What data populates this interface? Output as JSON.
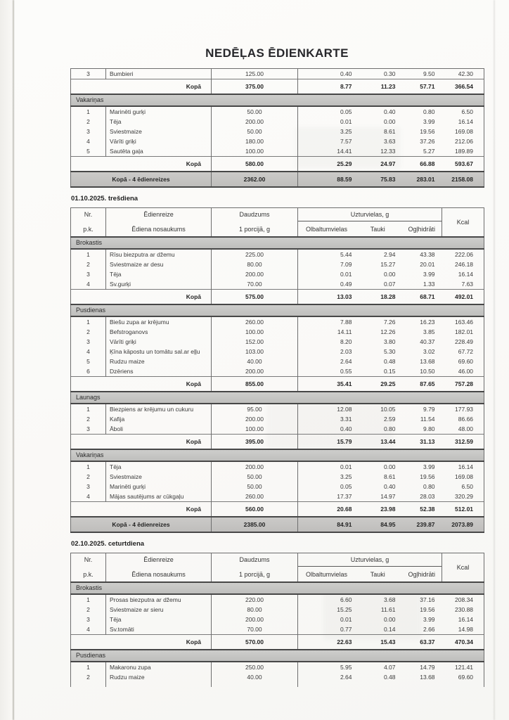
{
  "title": "NEDĒĻAS ĒDIENKARTE",
  "colors": {
    "paper": "#fbfbf9",
    "band_gray": "#c6c6c4",
    "line_dark": "#474747",
    "line_thin": "#6e6e6e",
    "ink": "#3a3a3a",
    "ink_bold": "#232323"
  },
  "columns": {
    "nr_top": "Nr.",
    "nr_bottom": "p.k.",
    "meal_top": "Ēdienreize",
    "meal_bottom": "Ēdiena nosaukums",
    "qty_top": "Daudzums",
    "qty_bottom": "1 porcijā, g",
    "nutrients_group": "Uzturvielas, g",
    "nutrients": [
      "Olbaltumvielas",
      "Tauki",
      "Ogļhidrāti"
    ],
    "kcal": "Kcal"
  },
  "tables": [
    {
      "heading": null,
      "has_header": false,
      "continued": true,
      "cut_off": false,
      "sections": [
        {
          "band": null,
          "rows": [
            {
              "nr": "3",
              "name": "Bumbieri",
              "qty": "125.00",
              "olb": "0.40",
              "tauki": "0.30",
              "ogl": "9.50",
              "kcal": "42.30"
            }
          ],
          "total": {
            "label": "Kopā",
            "qty": "375.00",
            "olb": "8.77",
            "tauki": "11.23",
            "ogl": "57.71",
            "kcal": "366.54"
          }
        },
        {
          "band": "Vakariņas",
          "rows": [
            {
              "nr": "1",
              "name": "Marinēti gurķi",
              "qty": "50.00",
              "olb": "0.05",
              "tauki": "0.40",
              "ogl": "0.80",
              "kcal": "6.50"
            },
            {
              "nr": "2",
              "name": "Tēja",
              "qty": "200.00",
              "olb": "0.01",
              "tauki": "0.00",
              "ogl": "3.99",
              "kcal": "16.14"
            },
            {
              "nr": "3",
              "name": "Sviestmaize",
              "qty": "50.00",
              "olb": "3.25",
              "tauki": "8.61",
              "ogl": "19.56",
              "kcal": "169.08"
            },
            {
              "nr": "4",
              "name": "Vārīti griķi",
              "qty": "180.00",
              "olb": "7.57",
              "tauki": "3.63",
              "ogl": "37.26",
              "kcal": "212.06"
            },
            {
              "nr": "5",
              "name": "Sautēta gaļa",
              "qty": "100.00",
              "olb": "14.41",
              "tauki": "12.33",
              "ogl": "5.27",
              "kcal": "189.89"
            }
          ],
          "total": {
            "label": "Kopā",
            "qty": "580.00",
            "olb": "25.29",
            "tauki": "24.97",
            "ogl": "66.88",
            "kcal": "593.67"
          }
        }
      ],
      "grand_total": {
        "label": "Kopā - 4 ēdienreizes",
        "qty": "2362.00",
        "olb": "88.59",
        "tauki": "75.83",
        "ogl": "283.01",
        "kcal": "2158.08"
      }
    },
    {
      "heading": "01.10.2025.  trešdiena",
      "has_header": true,
      "continued": false,
      "cut_off": false,
      "sections": [
        {
          "band": "Brokastis",
          "rows": [
            {
              "nr": "1",
              "name": "Rīsu biezputra ar džemu",
              "qty": "225.00",
              "olb": "5.44",
              "tauki": "2.94",
              "ogl": "43.38",
              "kcal": "222.06"
            },
            {
              "nr": "2",
              "name": "Sviestmaize ar desu",
              "qty": "80.00",
              "olb": "7.09",
              "tauki": "15.27",
              "ogl": "20.01",
              "kcal": "246.18"
            },
            {
              "nr": "3",
              "name": "Tēja",
              "qty": "200.00",
              "olb": "0.01",
              "tauki": "0.00",
              "ogl": "3.99",
              "kcal": "16.14"
            },
            {
              "nr": "4",
              "name": "Sv.gurķi",
              "qty": "70.00",
              "olb": "0.49",
              "tauki": "0.07",
              "ogl": "1.33",
              "kcal": "7.63"
            }
          ],
          "total": {
            "label": "Kopā",
            "qty": "575.00",
            "olb": "13.03",
            "tauki": "18.28",
            "ogl": "68.71",
            "kcal": "492.01"
          }
        },
        {
          "band": "Pusdienas",
          "rows": [
            {
              "nr": "1",
              "name": "Biešu zupa ar krējumu",
              "qty": "260.00",
              "olb": "7.88",
              "tauki": "7.26",
              "ogl": "16.23",
              "kcal": "163.46"
            },
            {
              "nr": "2",
              "name": "Befstroganovs",
              "qty": "100.00",
              "olb": "14.11",
              "tauki": "12.26",
              "ogl": "3.85",
              "kcal": "182.01"
            },
            {
              "nr": "3",
              "name": "Vārīti griķi",
              "qty": "152.00",
              "olb": "8.20",
              "tauki": "3.80",
              "ogl": "40.37",
              "kcal": "228.49"
            },
            {
              "nr": "4",
              "name": "Ķīna kāpostu un tomātu sal.ar eļļu",
              "qty": "103.00",
              "olb": "2.03",
              "tauki": "5.30",
              "ogl": "3.02",
              "kcal": "67.72",
              "wrap": true
            },
            {
              "nr": "5",
              "name": "Rudzu maize",
              "qty": "40.00",
              "olb": "2.64",
              "tauki": "0.48",
              "ogl": "13.68",
              "kcal": "69.60"
            },
            {
              "nr": "6",
              "name": "Dzēriens",
              "qty": "200.00",
              "olb": "0.55",
              "tauki": "0.15",
              "ogl": "10.50",
              "kcal": "46.00"
            }
          ],
          "total": {
            "label": "Kopā",
            "qty": "855.00",
            "olb": "35.41",
            "tauki": "29.25",
            "ogl": "87.65",
            "kcal": "757.28"
          }
        },
        {
          "band": "Launags",
          "rows": [
            {
              "nr": "1",
              "name": "Biezpiens ar krējumu un cukuru",
              "qty": "95.00",
              "olb": "12.08",
              "tauki": "10.05",
              "ogl": "9.79",
              "kcal": "177.93"
            },
            {
              "nr": "2",
              "name": "Kafija",
              "qty": "200.00",
              "olb": "3.31",
              "tauki": "2.59",
              "ogl": "11.54",
              "kcal": "86.66"
            },
            {
              "nr": "3",
              "name": "Āboli",
              "qty": "100.00",
              "olb": "0.40",
              "tauki": "0.80",
              "ogl": "9.80",
              "kcal": "48.00"
            }
          ],
          "total": {
            "label": "Kopā",
            "qty": "395.00",
            "olb": "15.79",
            "tauki": "13.44",
            "ogl": "31.13",
            "kcal": "312.59"
          }
        },
        {
          "band": "Vakariņas",
          "rows": [
            {
              "nr": "1",
              "name": "Tēja",
              "qty": "200.00",
              "olb": "0.01",
              "tauki": "0.00",
              "ogl": "3.99",
              "kcal": "16.14"
            },
            {
              "nr": "2",
              "name": "Sviestmaize",
              "qty": "50.00",
              "olb": "3.25",
              "tauki": "8.61",
              "ogl": "19.56",
              "kcal": "169.08"
            },
            {
              "nr": "3",
              "name": "Marinēti gurķi",
              "qty": "50.00",
              "olb": "0.05",
              "tauki": "0.40",
              "ogl": "0.80",
              "kcal": "6.50"
            },
            {
              "nr": "4",
              "name": "Mājas sautējums ar cūkgaļu",
              "qty": "260.00",
              "olb": "17.37",
              "tauki": "14.97",
              "ogl": "28.03",
              "kcal": "320.29"
            }
          ],
          "total": {
            "label": "Kopā",
            "qty": "560.00",
            "olb": "20.68",
            "tauki": "23.98",
            "ogl": "52.38",
            "kcal": "512.01"
          }
        }
      ],
      "grand_total": {
        "label": "Kopā - 4 ēdienreizes",
        "qty": "2385.00",
        "olb": "84.91",
        "tauki": "84.95",
        "ogl": "239.87",
        "kcal": "2073.89"
      }
    },
    {
      "heading": "02.10.2025.  ceturtdiena",
      "has_header": true,
      "continued": false,
      "cut_off": true,
      "sections": [
        {
          "band": "Brokastis",
          "rows": [
            {
              "nr": "1",
              "name": "Prosas biezputra ar džemu",
              "qty": "220.00",
              "olb": "6.60",
              "tauki": "3.68",
              "ogl": "37.16",
              "kcal": "208.34"
            },
            {
              "nr": "2",
              "name": "Sviestmaize ar sieru",
              "qty": "80.00",
              "olb": "15.25",
              "tauki": "11.61",
              "ogl": "19.56",
              "kcal": "230.88"
            },
            {
              "nr": "3",
              "name": "Tēja",
              "qty": "200.00",
              "olb": "0.01",
              "tauki": "0.00",
              "ogl": "3.99",
              "kcal": "16.14"
            },
            {
              "nr": "4",
              "name": "Sv.tomāti",
              "qty": "70.00",
              "olb": "0.77",
              "tauki": "0.14",
              "ogl": "2.66",
              "kcal": "14.98"
            }
          ],
          "total": {
            "label": "Kopā",
            "qty": "570.00",
            "olb": "22.63",
            "tauki": "15.43",
            "ogl": "63.37",
            "kcal": "470.34"
          }
        },
        {
          "band": "Pusdienas",
          "rows": [
            {
              "nr": "1",
              "name": "Makaronu zupa",
              "qty": "250.00",
              "olb": "5.95",
              "tauki": "4.07",
              "ogl": "14.79",
              "kcal": "121.41"
            },
            {
              "nr": "2",
              "name": "Rudzu maize",
              "qty": "40.00",
              "olb": "2.64",
              "tauki": "0.48",
              "ogl": "13.68",
              "kcal": "69.60"
            }
          ],
          "total": null
        }
      ],
      "grand_total": null
    }
  ]
}
